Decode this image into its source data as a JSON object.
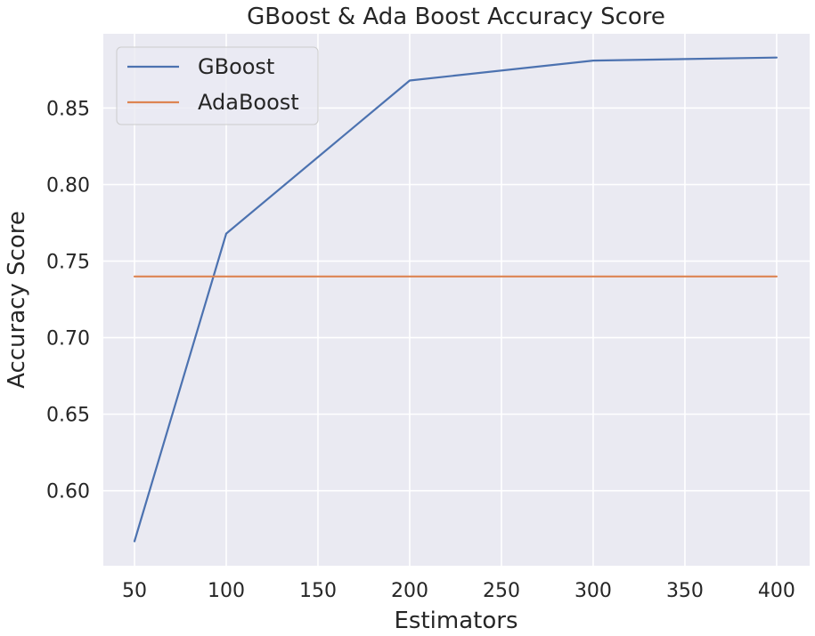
{
  "chart_data": {
    "type": "line",
    "title": "GBoost & Ada Boost Accuracy Score",
    "xlabel": "Estimators",
    "ylabel": "Accuracy Score",
    "x": [
      50,
      100,
      200,
      300,
      400
    ],
    "xlim": [
      33,
      418
    ],
    "ylim": [
      0.551,
      0.8985
    ],
    "xticks": [
      50,
      100,
      150,
      200,
      250,
      300,
      350,
      400
    ],
    "yticks": [
      0.6,
      0.65,
      0.7,
      0.75,
      0.8,
      0.85
    ],
    "ytick_labels": [
      "0.60",
      "0.65",
      "0.70",
      "0.75",
      "0.80",
      "0.85"
    ],
    "grid": true,
    "legend_position": "top-left",
    "series": [
      {
        "name": "GBoost",
        "color": "#4c72b0",
        "values": [
          0.567,
          0.768,
          0.868,
          0.881,
          0.883
        ]
      },
      {
        "name": "AdaBoost",
        "color": "#dd8452",
        "values": [
          0.74,
          0.74,
          0.74,
          0.74,
          0.74
        ]
      }
    ]
  }
}
